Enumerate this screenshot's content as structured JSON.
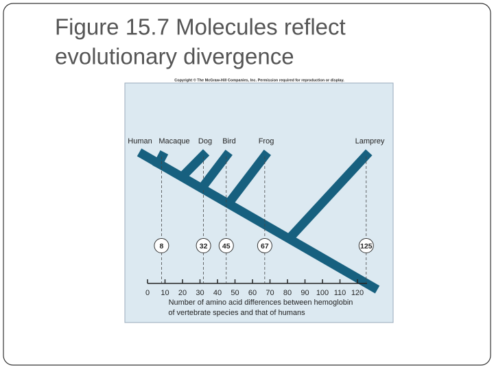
{
  "slide": {
    "title_lines": [
      "Figure 15.7 Molecules reflect",
      "evolutionary divergence"
    ]
  },
  "figure": {
    "copyright": "Copyright © The McGraw-Hill Companies, Inc. Permission required for reproduction or display.",
    "taxa": [
      {
        "name": "Human",
        "differences": null
      },
      {
        "name": "Macaque",
        "differences": 8
      },
      {
        "name": "Dog",
        "differences": 32
      },
      {
        "name": "Bird",
        "differences": 45
      },
      {
        "name": "Frog",
        "differences": 67
      },
      {
        "name": "Lamprey",
        "differences": 125
      }
    ],
    "axis": {
      "range": [
        0,
        120
      ],
      "ticks": [
        0,
        10,
        20,
        30,
        40,
        50,
        60,
        70,
        80,
        90,
        100,
        110,
        120
      ],
      "label_lines": [
        "Number of amino acid differences between hemoglobin",
        "of vertebrate species and that of humans"
      ]
    }
  }
}
